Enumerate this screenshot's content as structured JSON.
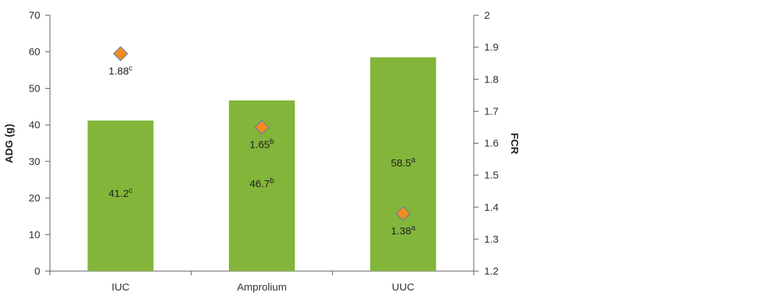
{
  "chart_data": {
    "type": "bar",
    "categories": [
      "IUC",
      "Amprolium",
      "UUC"
    ],
    "series": [
      {
        "axis": "left",
        "mark": "bar",
        "color": "#82b53a",
        "values": [
          41.2,
          46.7,
          58.5
        ],
        "labels": [
          "41.2",
          "46.7",
          "58.5"
        ],
        "superscripts": [
          "c",
          "b",
          "a"
        ]
      },
      {
        "axis": "right",
        "mark": "diamond",
        "color": "#f08c22",
        "stroke": "#6a7fa0",
        "values": [
          1.88,
          1.65,
          1.38
        ],
        "labels": [
          "1.88",
          "1.65",
          "1.38"
        ],
        "superscripts": [
          "c",
          "b",
          "a"
        ]
      }
    ],
    "ylabel": "ADG (g)",
    "y2label": "FCR",
    "ylim": [
      0,
      70
    ],
    "yticks": [
      "0",
      "10",
      "20",
      "30",
      "40",
      "50",
      "60",
      "70"
    ],
    "y2lim": [
      1.2,
      2.0
    ],
    "y2ticks": [
      "1.2",
      "1.3",
      "1.4",
      "1.5",
      "1.6",
      "1.7",
      "1.8",
      "1.9",
      "2"
    ],
    "grid": false
  }
}
